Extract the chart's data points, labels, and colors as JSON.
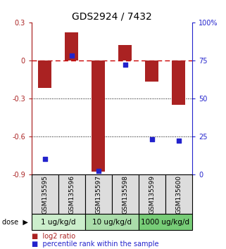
{
  "title": "GDS2924 / 7432",
  "samples": [
    "GSM135595",
    "GSM135596",
    "GSM135597",
    "GSM135598",
    "GSM135599",
    "GSM135600"
  ],
  "log2_ratio": [
    -0.22,
    0.22,
    -0.88,
    0.12,
    -0.17,
    -0.35
  ],
  "percentile_rank": [
    10,
    78,
    2,
    72,
    23,
    22
  ],
  "bar_color": "#aa2222",
  "dot_color": "#2222cc",
  "left_ylim": [
    -0.9,
    0.3
  ],
  "right_ylim": [
    0,
    100
  ],
  "left_yticks": [
    0.3,
    0,
    -0.3,
    -0.6,
    -0.9
  ],
  "right_yticks": [
    100,
    75,
    50,
    25,
    0
  ],
  "right_yticklabels": [
    "100%",
    "75",
    "50",
    "25",
    "0"
  ],
  "dose_groups": [
    {
      "label": "1 ug/kg/d",
      "samples": [
        0,
        1
      ],
      "color": "#cceecc"
    },
    {
      "label": "10 ug/kg/d",
      "samples": [
        2,
        3
      ],
      "color": "#aaddaa"
    },
    {
      "label": "1000 ug/kg/d",
      "samples": [
        4,
        5
      ],
      "color": "#77cc77"
    }
  ],
  "sample_bg_color": "#dddddd",
  "hline_0_color": "#cc0000",
  "hline_dotted_color": "#000000",
  "bg_color": "#ffffff",
  "bar_width": 0.5,
  "dot_size": 18,
  "legend_red_label": "log2 ratio",
  "legend_blue_label": "percentile rank within the sample",
  "title_fontsize": 10,
  "tick_fontsize": 7,
  "sample_label_fontsize": 6.5,
  "dose_label_fontsize": 7.5
}
